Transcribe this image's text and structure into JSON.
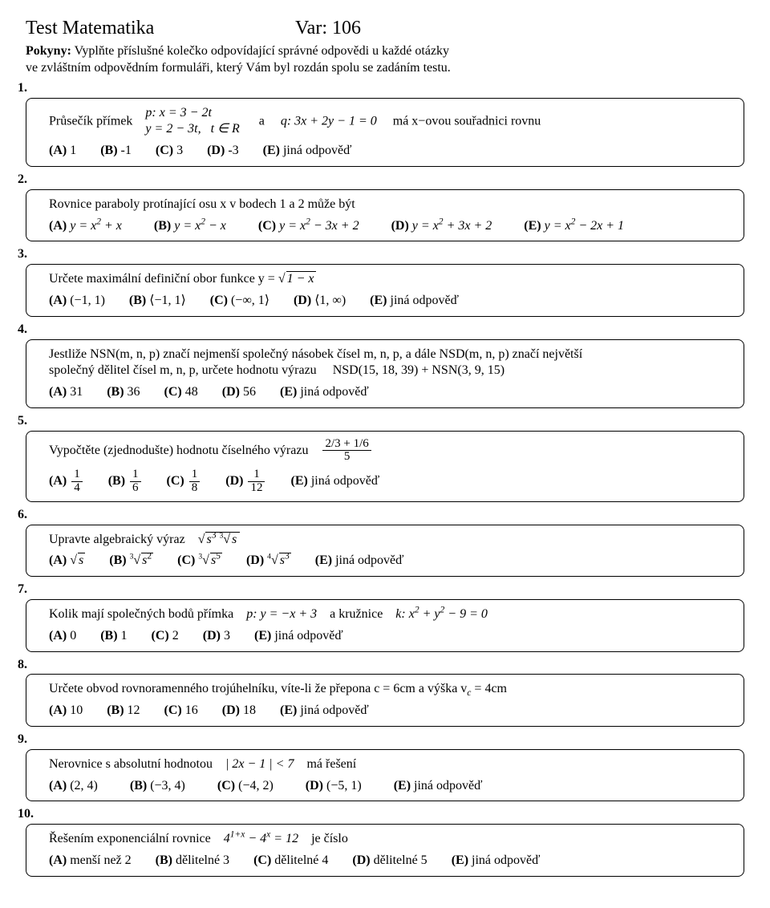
{
  "title_left": "Test Matematika",
  "title_right": "Var: 106",
  "instr_bold": "Pokyny:",
  "instr_line1": " Vyplňte příslušné kolečko odpovídající správné odpovědi u každé otázky",
  "instr_line2": "ve zvláštním odpovědním formuláři, který Vám byl rozdán spolu se zadáním testu.",
  "q1": {
    "num": "1.",
    "pre": "Průsečík přímek",
    "eq1a": "p: x = 3 − 2t",
    "eq1b": "y = 2 − 3t,",
    "tR": "t ∈ R",
    "mid": "a",
    "eq2": "q: 3x + 2y − 1 = 0",
    "post": "má x−ovou souřadnici rovnu",
    "A": "1",
    "B": "-1",
    "C": "3",
    "D": "-3",
    "E": "jiná odpověď"
  },
  "q2": {
    "num": "2.",
    "text": "Rovnice paraboly protínající osu x v bodech 1 a 2 může být",
    "A_pre": "y = x",
    "A_post": " + x",
    "B_pre": "y = x",
    "B_post": " − x",
    "C_pre": "y = x",
    "C_post": " − 3x + 2",
    "D_pre": "y = x",
    "D_post": " + 3x + 2",
    "E_pre": "y = x",
    "E_post": " − 2x + 1"
  },
  "q3": {
    "num": "3.",
    "text": "Určete maximální definiční obor funkce y =",
    "rad": "1 − x",
    "A": "(−1, 1)",
    "B": "⟨−1, 1⟩",
    "C": "(−∞, 1⟩",
    "D": "⟨1, ∞)",
    "E": "jiná odpověď"
  },
  "q4": {
    "num": "4.",
    "line1a": "Jestliže NSN(m, n, p) značí nejmenší společný násobek čísel m, n, p, a dále NSD(m, n, p) značí největší",
    "line2a": "společný dělitel čísel m, n, p, určete hodnotu výrazu",
    "expr": "NSD(15, 18, 39) + NSN(3, 9, 15)",
    "A": "31",
    "B": "36",
    "C": "48",
    "D": "56",
    "E": "jiná odpověď"
  },
  "q5": {
    "num": "5.",
    "text": "Vypočtěte (zjednodušte) hodnotu číselného výrazu",
    "frac_n": "2/3 + 1/6",
    "frac_d": "5",
    "A_n": "1",
    "A_d": "4",
    "B_n": "1",
    "B_d": "6",
    "C_n": "1",
    "C_d": "8",
    "D_n": "1",
    "D_d": "12",
    "E": "jiná odpověď"
  },
  "q6": {
    "num": "6.",
    "text": "Upravte algebraický výraz",
    "E": "jiná odpověď"
  },
  "q7": {
    "num": "7.",
    "text_a": "Kolik mají společných bodů přímka",
    "eq1": "p: y = −x + 3",
    "mid": "a kružnice",
    "eq2pre": "k: x",
    "eq2mid": " + y",
    "eq2post": " − 9 = 0",
    "A": "0",
    "B": "1",
    "C": "2",
    "D": "3",
    "E": "jiná odpověď"
  },
  "q8": {
    "num": "8.",
    "text_a": "Určete obvod rovnoramenného trojúhelníku, víte-li že přepona c = 6cm a výška v",
    "text_b": " = 4cm",
    "A": "10",
    "B": "12",
    "C": "16",
    "D": "18",
    "E": "jiná odpověď"
  },
  "q9": {
    "num": "9.",
    "text_a": "Nerovnice s absolutní hodnotou",
    "eq": "| 2x − 1 | < 7",
    "text_b": "má řešení",
    "A": "(2, 4)",
    "B": "(−3, 4)",
    "C": "(−4, 2)",
    "D": "(−5, 1)",
    "E": "jiná odpověď"
  },
  "q10": {
    "num": "10.",
    "text_a": "Řešením exponenciální rovnice",
    "eq_pre": "4",
    "eq_sup": "1+x",
    "eq_mid": " − 4",
    "eq_sup2": "x",
    "eq_post": " = 12",
    "text_b": "je číslo",
    "A": "menší než 2",
    "B": "dělitelné 3",
    "C": "dělitelné 4",
    "D": "dělitelné 5",
    "E": "jiná odpověď"
  },
  "labels": {
    "A": "(A)",
    "B": "(B)",
    "C": "(C)",
    "D": "(D)",
    "E": "(E)"
  }
}
